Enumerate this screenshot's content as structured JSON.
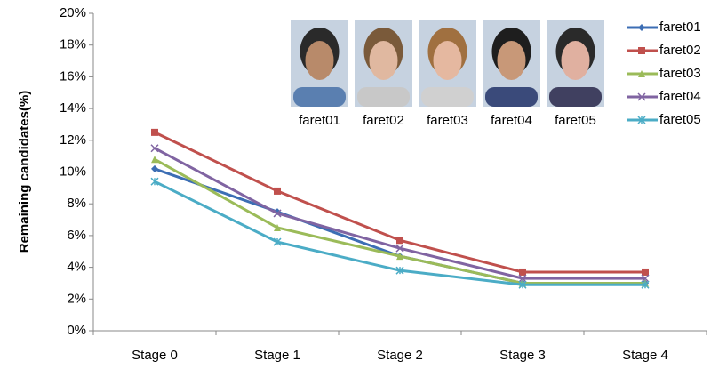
{
  "chart_data": {
    "type": "line",
    "y_label": "Remaining candidates(%)",
    "categories": [
      "Stage 0",
      "Stage 1",
      "Stage 2",
      "Stage 3",
      "Stage 4"
    ],
    "series": [
      {
        "name": "faret01",
        "color": "#3c6eb4",
        "marker": "diamond",
        "values": [
          10.2,
          7.5,
          4.7,
          3.0,
          3.0
        ]
      },
      {
        "name": "faret02",
        "color": "#c0504d",
        "marker": "square",
        "values": [
          12.5,
          8.8,
          5.7,
          3.7,
          3.7
        ]
      },
      {
        "name": "faret03",
        "color": "#9bbb59",
        "marker": "triangle",
        "values": [
          10.8,
          6.5,
          4.7,
          3.0,
          3.0
        ]
      },
      {
        "name": "faret04",
        "color": "#8064a2",
        "marker": "cross",
        "values": [
          11.5,
          7.4,
          5.2,
          3.3,
          3.3
        ]
      },
      {
        "name": "faret05",
        "color": "#4bacc6",
        "marker": "star",
        "values": [
          9.4,
          5.6,
          3.8,
          2.9,
          2.9
        ]
      }
    ],
    "ylim": [
      0,
      20
    ],
    "yticks": [
      {
        "value": 0,
        "label": "0%"
      },
      {
        "value": 2,
        "label": "2%"
      },
      {
        "value": 4,
        "label": "4%"
      },
      {
        "value": 6,
        "label": "6%"
      },
      {
        "value": 8,
        "label": "8%"
      },
      {
        "value": 10,
        "label": "10%"
      },
      {
        "value": 12,
        "label": "12%"
      },
      {
        "value": 14,
        "label": "14%"
      },
      {
        "value": 16,
        "label": "16%"
      },
      {
        "value": 18,
        "label": "18%"
      },
      {
        "value": 20,
        "label": "20%"
      }
    ],
    "grid": false,
    "legend": "upper right",
    "photos": {
      "captions": [
        "faret01",
        "faret02",
        "faret03",
        "faret04",
        "faret05"
      ]
    }
  }
}
